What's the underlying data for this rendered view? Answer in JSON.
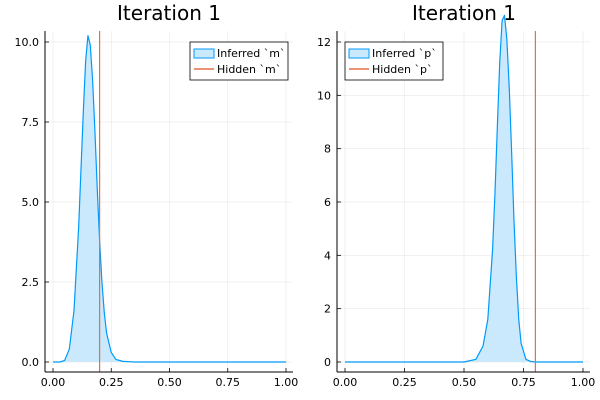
{
  "chart_data": [
    {
      "type": "area",
      "title": "Iteration 1",
      "xlabel": "",
      "ylabel": "",
      "xlim": [
        0,
        1
      ],
      "ylim": [
        0,
        10.5
      ],
      "xticks": [
        "0.00",
        "0.25",
        "0.50",
        "0.75",
        "1.00"
      ],
      "yticks": [
        "0.0",
        "2.5",
        "5.0",
        "7.5",
        "10.0"
      ],
      "xtick_values": [
        0,
        0.25,
        0.5,
        0.75,
        1.0
      ],
      "ytick_values": [
        0,
        2.5,
        5,
        7.5,
        10
      ],
      "grid": true,
      "legend_position": "top-right",
      "series": [
        {
          "name": "Inferred `m`",
          "type": "area",
          "color": "#009AFA",
          "fill_color": "#cbe9fd",
          "x": [
            0.0,
            0.03,
            0.05,
            0.07,
            0.09,
            0.11,
            0.13,
            0.14,
            0.15,
            0.16,
            0.17,
            0.18,
            0.19,
            0.2,
            0.21,
            0.22,
            0.23,
            0.25,
            0.27,
            0.3,
            0.35,
            0.4,
            0.5,
            0.6,
            0.8,
            1.0
          ],
          "y": [
            0.0,
            0.0,
            0.05,
            0.4,
            1.6,
            4.2,
            7.8,
            9.4,
            10.2,
            9.9,
            8.8,
            7.2,
            5.4,
            3.8,
            2.5,
            1.55,
            0.9,
            0.3,
            0.08,
            0.02,
            0.0,
            0.0,
            0.0,
            0.0,
            0.0,
            0.0
          ]
        },
        {
          "name": "Hidden `m`",
          "type": "vline",
          "color": "#E26F46",
          "x": 0.2
        }
      ]
    },
    {
      "type": "area",
      "title": "Iteration 1",
      "xlabel": "",
      "ylabel": "",
      "xlim": [
        0,
        1
      ],
      "ylim": [
        0,
        13.3
      ],
      "xticks": [
        "0.00",
        "0.25",
        "0.50",
        "0.75",
        "1.00"
      ],
      "yticks": [
        "0",
        "2",
        "4",
        "6",
        "8",
        "10",
        "12"
      ],
      "xtick_values": [
        0,
        0.25,
        0.5,
        0.75,
        1.0
      ],
      "ytick_values": [
        0,
        2,
        4,
        6,
        8,
        10,
        12
      ],
      "grid": true,
      "legend_position": "top-left",
      "series": [
        {
          "name": "Inferred `p`",
          "type": "area",
          "color": "#009AFA",
          "fill_color": "#cbe9fd",
          "x": [
            0.0,
            0.3,
            0.5,
            0.55,
            0.58,
            0.6,
            0.62,
            0.63,
            0.64,
            0.65,
            0.66,
            0.67,
            0.68,
            0.69,
            0.7,
            0.71,
            0.72,
            0.73,
            0.74,
            0.76,
            0.78,
            0.8,
            1.0
          ],
          "y": [
            0.0,
            0.0,
            0.0,
            0.1,
            0.6,
            1.6,
            4.2,
            6.3,
            8.8,
            11.2,
            12.8,
            13.0,
            12.1,
            10.3,
            7.9,
            5.3,
            3.2,
            1.6,
            0.7,
            0.1,
            0.02,
            0.0,
            0.0
          ]
        },
        {
          "name": "Hidden `p`",
          "type": "vline",
          "color": "#E26F46",
          "x": 0.8
        }
      ]
    }
  ]
}
